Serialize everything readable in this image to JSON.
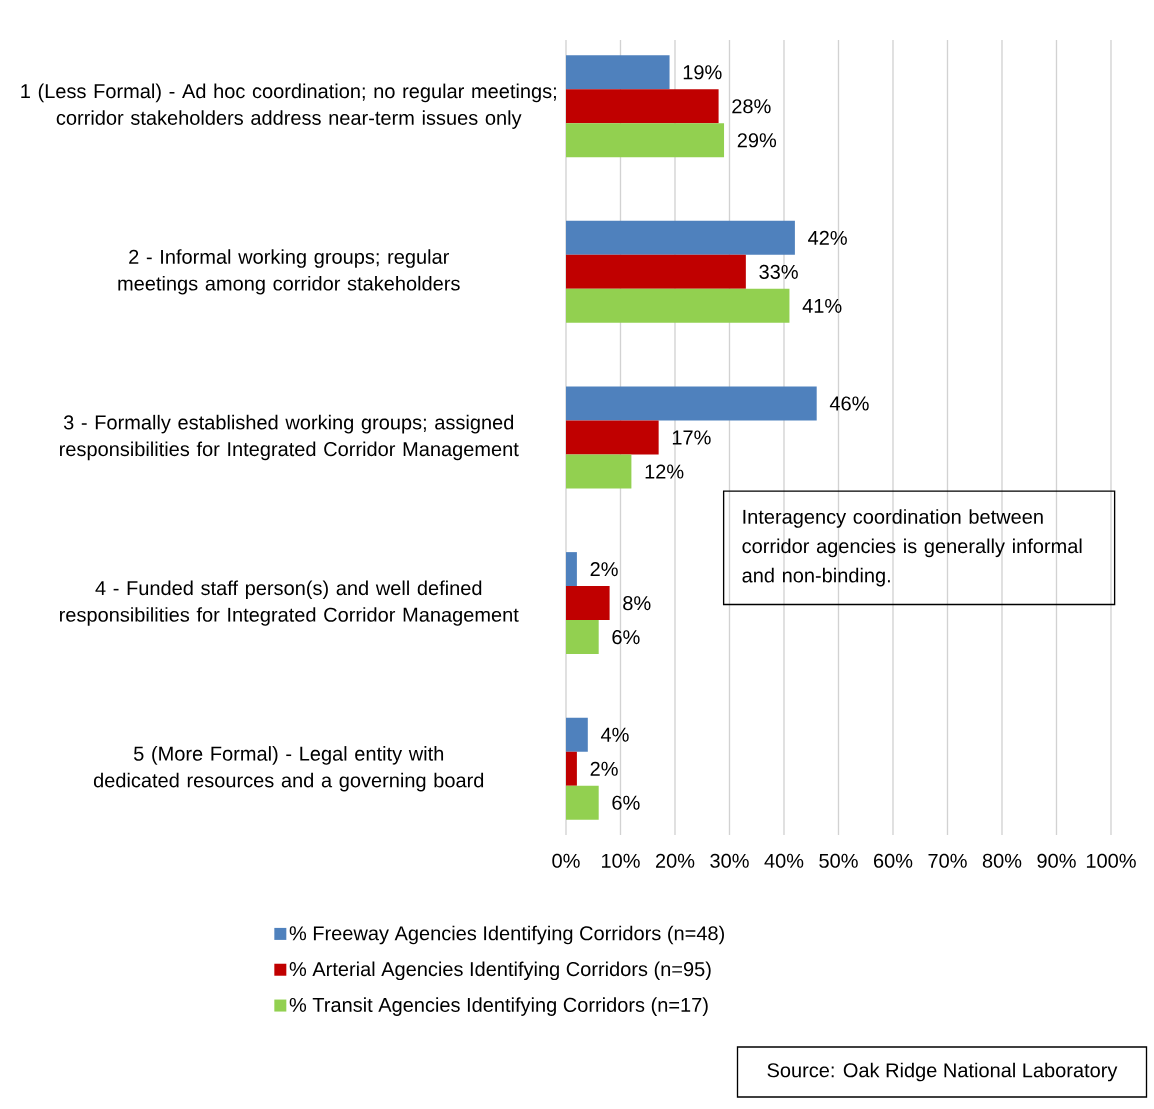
{
  "chart_data": {
    "type": "bar",
    "orientation": "horizontal",
    "categories": [
      "1 (Less Formal) - Ad hoc coordination; no regular meetings; corridor stakeholders address near-term issues only",
      "2 - Informal working groups; regular meetings among corridor stakeholders",
      "3 - Formally established working groups; assigned responsibilities for Integrated Corridor Management",
      "4 - Funded staff person(s) and well defined responsibilities for Integrated Corridor Management",
      "5 (More Formal) - Legal entity with dedicated resources and a governing board"
    ],
    "series": [
      {
        "name": "% Freeway Agencies Identifying Corridors (n=48)",
        "color": "#4f81bd",
        "values": [
          19,
          42,
          46,
          2,
          4
        ],
        "value_labels": [
          "19%",
          "42%",
          "46%",
          "2%",
          "4%"
        ]
      },
      {
        "name": "% Arterial Agencies Identifying Corridors (n=95)",
        "color": "#c00000",
        "values": [
          28,
          33,
          17,
          8,
          2
        ],
        "value_labels": [
          "28%",
          "33%",
          "17%",
          "8%",
          "2%"
        ]
      },
      {
        "name": "% Transit Agencies Identifying Corridors (n=17)",
        "color": "#92d050",
        "values": [
          29,
          41,
          12,
          6,
          6
        ],
        "value_labels": [
          "29%",
          "41%",
          "12%",
          "6%",
          "6%"
        ]
      }
    ],
    "xlim": [
      0,
      100
    ],
    "xticks": [
      {
        "value": 0,
        "label": "0%"
      },
      {
        "value": 10,
        "label": "10%"
      },
      {
        "value": 20,
        "label": "20%"
      },
      {
        "value": 30,
        "label": "30%"
      },
      {
        "value": 40,
        "label": "40%"
      },
      {
        "value": 50,
        "label": "50%"
      },
      {
        "value": 60,
        "label": "60%"
      },
      {
        "value": 70,
        "label": "70%"
      },
      {
        "value": 80,
        "label": "80%"
      },
      {
        "value": 90,
        "label": "90%"
      },
      {
        "value": 100,
        "label": "100%"
      }
    ],
    "grid": "x",
    "legend": "bottom",
    "annotations": [
      "Interagency coordination between corridor agencies is generally informal and non-binding.",
      "Source:  Oak Ridge National Laboratory"
    ]
  }
}
